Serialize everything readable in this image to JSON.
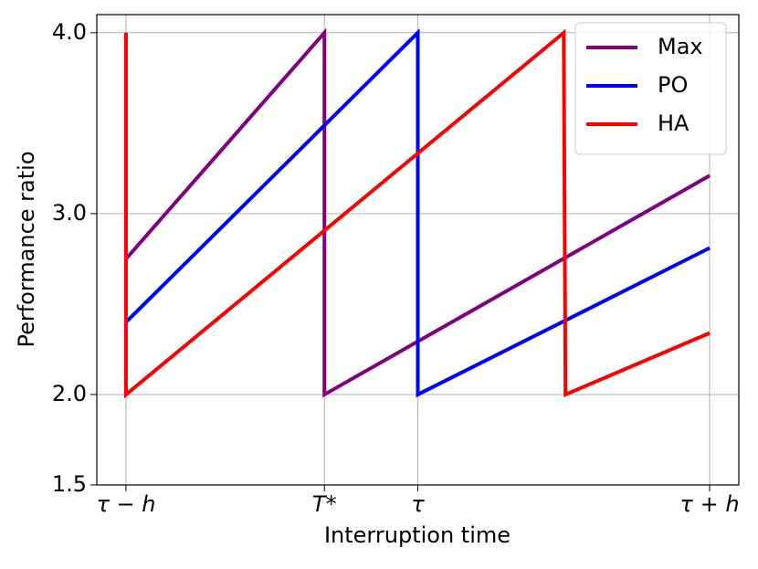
{
  "chart_data": {
    "type": "line",
    "xlabel": "Interruption time",
    "ylabel": "Performance ratio",
    "xlim": [
      -0.05,
      1.05
    ],
    "ylim": [
      1.5,
      4.1
    ],
    "xticks": [
      {
        "value": 0,
        "label": "τ − h"
      },
      {
        "value": 0.34,
        "label": "T*"
      },
      {
        "value": 0.5,
        "label": "τ"
      },
      {
        "value": 1,
        "label": "τ + h"
      }
    ],
    "yticks": [
      1.5,
      {
        "value": 2,
        "label": "2.0"
      },
      {
        "value": 3,
        "label": "3.0"
      },
      {
        "value": 4,
        "label": "4.0"
      }
    ],
    "grid": true,
    "legend": "upper right",
    "series": [
      {
        "name": "Max",
        "color": "#800080",
        "x": [
          0,
          0.34,
          0.34,
          1
        ],
        "values": [
          2.75,
          4.0,
          2.0,
          3.21
        ]
      },
      {
        "name": "PO",
        "color": "#0000ff",
        "x": [
          0,
          0.5,
          0.5,
          1
        ],
        "values": [
          2.4,
          4.0,
          2.0,
          2.81
        ]
      },
      {
        "name": "HA",
        "color": "#ff0000",
        "x": [
          0,
          0,
          0.75,
          0.753,
          1
        ],
        "values": [
          4.0,
          2.0,
          4.0,
          2.0,
          2.34
        ]
      }
    ]
  }
}
